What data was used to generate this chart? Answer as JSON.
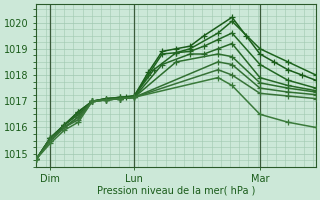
{
  "bg_color": "#cce8d8",
  "grid_color": "#a0c8b0",
  "xlabel": "Pression niveau de la mer( hPa )",
  "xtick_labels": [
    "Dim",
    "Lun",
    "Mar"
  ],
  "ytick_values": [
    1015,
    1016,
    1017,
    1018,
    1019,
    1020
  ],
  "ylim": [
    1014.5,
    1020.7
  ],
  "xlim": [
    0,
    10
  ],
  "series": [
    {
      "x": [
        0.0,
        0.5,
        1.0,
        1.5,
        2.0,
        2.5,
        3.0,
        3.2,
        3.5,
        4.0,
        4.5,
        5.0,
        5.5,
        6.0,
        7.0,
        7.5,
        8.0,
        8.5,
        9.0,
        9.5,
        10.0
      ],
      "y": [
        1014.8,
        1015.6,
        1016.1,
        1016.6,
        1017.0,
        1017.1,
        1017.1,
        1017.15,
        1017.2,
        1018.1,
        1018.9,
        1019.0,
        1019.1,
        1019.5,
        1020.2,
        1019.5,
        1018.8,
        1018.5,
        1018.2,
        1018.0,
        1017.8
      ],
      "color": "#1a5c1a"
    },
    {
      "x": [
        0.0,
        0.5,
        1.0,
        1.5,
        2.0,
        2.5,
        3.0,
        3.5,
        4.0,
        4.5,
        5.0,
        5.5,
        6.5,
        7.0,
        8.0,
        9.0,
        10.0
      ],
      "y": [
        1014.8,
        1015.6,
        1016.1,
        1016.6,
        1017.0,
        1017.1,
        1017.15,
        1017.2,
        1018.0,
        1018.8,
        1018.85,
        1019.0,
        1019.6,
        1020.05,
        1019.0,
        1018.5,
        1018.0
      ],
      "color": "#1e641e"
    },
    {
      "x": [
        0.0,
        0.5,
        1.0,
        1.5,
        2.0,
        2.5,
        3.0,
        3.5,
        4.2,
        5.0,
        5.5,
        6.0,
        6.5,
        7.0,
        8.0,
        9.0,
        10.0
      ],
      "y": [
        1014.8,
        1015.6,
        1016.1,
        1016.5,
        1017.0,
        1017.1,
        1017.15,
        1017.2,
        1018.2,
        1018.85,
        1018.9,
        1019.1,
        1019.35,
        1019.6,
        1018.4,
        1017.8,
        1017.5
      ],
      "color": "#226622"
    },
    {
      "x": [
        0.0,
        0.5,
        1.0,
        1.5,
        2.0,
        2.5,
        3.0,
        3.5,
        4.5,
        5.5,
        6.0,
        6.5,
        7.0,
        8.0,
        9.0,
        10.0
      ],
      "y": [
        1014.8,
        1015.6,
        1016.1,
        1016.5,
        1017.0,
        1017.05,
        1017.1,
        1017.15,
        1018.4,
        1018.8,
        1018.8,
        1019.0,
        1019.2,
        1017.9,
        1017.6,
        1017.4
      ],
      "color": "#276827"
    },
    {
      "x": [
        0.0,
        0.5,
        1.0,
        1.5,
        2.0,
        2.5,
        3.0,
        3.5,
        5.0,
        6.5,
        7.0,
        8.0,
        9.0,
        10.0
      ],
      "y": [
        1014.8,
        1015.6,
        1016.0,
        1016.4,
        1017.0,
        1017.05,
        1017.1,
        1017.15,
        1018.5,
        1018.8,
        1018.7,
        1017.7,
        1017.5,
        1017.35
      ],
      "color": "#2d6e2d"
    },
    {
      "x": [
        0.0,
        0.5,
        1.0,
        1.5,
        2.0,
        2.5,
        3.0,
        3.5,
        6.5,
        7.0,
        8.0,
        9.0,
        10.0
      ],
      "y": [
        1014.8,
        1015.5,
        1016.0,
        1016.4,
        1017.0,
        1017.05,
        1017.1,
        1017.15,
        1018.5,
        1018.4,
        1017.5,
        1017.35,
        1017.25
      ],
      "color": "#327032"
    },
    {
      "x": [
        0.0,
        0.5,
        1.0,
        1.5,
        2.0,
        2.5,
        3.0,
        3.5,
        6.5,
        7.0,
        8.0,
        9.0,
        10.0
      ],
      "y": [
        1014.8,
        1015.5,
        1016.0,
        1016.3,
        1017.0,
        1017.05,
        1017.1,
        1017.15,
        1018.2,
        1018.0,
        1017.3,
        1017.2,
        1017.1
      ],
      "color": "#377237"
    },
    {
      "x": [
        0.0,
        0.5,
        1.0,
        1.5,
        2.0,
        2.5,
        3.0,
        3.5,
        6.5,
        7.0,
        8.0,
        9.0,
        10.0
      ],
      "y": [
        1014.8,
        1015.4,
        1015.9,
        1016.2,
        1017.0,
        1017.05,
        1017.1,
        1017.15,
        1017.9,
        1017.6,
        1016.5,
        1016.2,
        1016.0
      ],
      "color": "#3a7a3a"
    }
  ],
  "xtick_positions": [
    0.5,
    3.5,
    8.0
  ],
  "vline_positions": [
    0.5,
    3.5,
    8.0
  ],
  "marker": "+",
  "markersize": 4,
  "linewidth": 1.1
}
